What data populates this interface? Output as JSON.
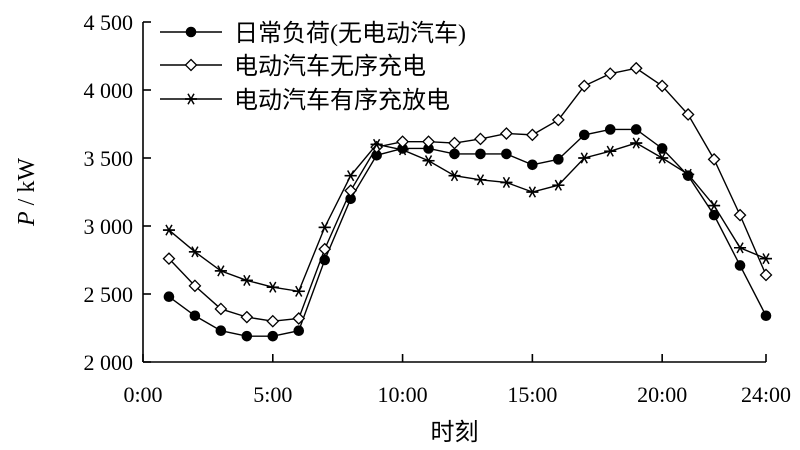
{
  "chart_data": {
    "type": "line",
    "title": "",
    "xlabel": "时刻",
    "ylabel_italic": "P",
    "ylabel_unit": " / kW",
    "xlim": [
      0,
      24
    ],
    "ylim": [
      2000,
      4500
    ],
    "x_ticks": [
      0,
      5,
      10,
      15,
      20,
      24
    ],
    "x_tick_labels": [
      "0:00",
      "5:00",
      "10:00",
      "15:00",
      "20:00",
      "24:00"
    ],
    "y_ticks": [
      2000,
      2500,
      3000,
      3500,
      4000,
      4500
    ],
    "y_tick_labels": [
      "2 000",
      "2 500",
      "3 000",
      "3 500",
      "4 000",
      "4 500"
    ],
    "grid": false,
    "legend_position": "top-left",
    "series": [
      {
        "name": "日常负荷(无电动汽车)",
        "marker": "circle",
        "x": [
          1,
          2,
          3,
          4,
          5,
          6,
          7,
          8,
          9,
          10,
          11,
          12,
          13,
          14,
          15,
          16,
          17,
          18,
          19,
          20,
          21,
          22,
          23,
          24
        ],
        "values": [
          2480,
          2340,
          2230,
          2190,
          2190,
          2230,
          2750,
          3200,
          3520,
          3570,
          3570,
          3530,
          3530,
          3530,
          3450,
          3490,
          3670,
          3710,
          3710,
          3570,
          3370,
          3080,
          2710,
          2340
        ]
      },
      {
        "name": "电动汽车无序充电",
        "marker": "diamond",
        "x": [
          1,
          2,
          3,
          4,
          5,
          6,
          7,
          8,
          9,
          10,
          11,
          12,
          13,
          14,
          15,
          16,
          17,
          18,
          19,
          20,
          21,
          22,
          23,
          24
        ],
        "values": [
          2760,
          2560,
          2390,
          2330,
          2300,
          2320,
          2830,
          3260,
          3580,
          3620,
          3620,
          3610,
          3640,
          3680,
          3670,
          3780,
          4030,
          4120,
          4160,
          4030,
          3820,
          3490,
          3080,
          2640
        ]
      },
      {
        "name": "电动汽车有序充放电",
        "marker": "asterisk",
        "x": [
          1,
          2,
          3,
          4,
          5,
          6,
          7,
          8,
          9,
          10,
          11,
          12,
          13,
          14,
          15,
          16,
          17,
          18,
          19,
          20,
          21,
          22,
          23,
          24
        ],
        "values": [
          2970,
          2810,
          2670,
          2600,
          2550,
          2520,
          2990,
          3370,
          3600,
          3560,
          3480,
          3370,
          3340,
          3320,
          3250,
          3300,
          3500,
          3550,
          3610,
          3500,
          3380,
          3150,
          2840,
          2760
        ]
      }
    ]
  }
}
